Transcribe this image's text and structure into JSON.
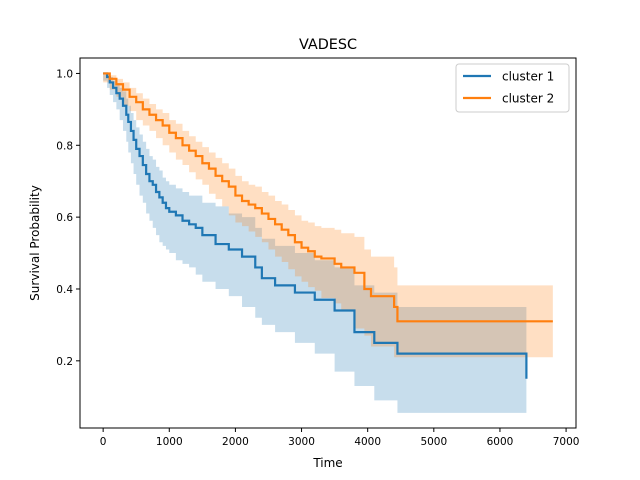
{
  "chart_data": {
    "type": "line",
    "title": "VADESC",
    "xlabel": "Time",
    "ylabel": "Survival Probability",
    "xlim": [
      -350,
      7150
    ],
    "ylim": [
      0.013,
      1.043
    ],
    "xticks": [
      0,
      1000,
      2000,
      3000,
      4000,
      5000,
      6000,
      7000
    ],
    "yticks": [
      0.2,
      0.4,
      0.6,
      0.8,
      1.0
    ],
    "xtick_labels": [
      "0",
      "1000",
      "2000",
      "3000",
      "4000",
      "5000",
      "6000",
      "7000"
    ],
    "ytick_labels": [
      "0.2",
      "0.4",
      "0.6",
      "0.8",
      "1.0"
    ],
    "legend_position": "top-right",
    "grid": false,
    "step": "post",
    "series": [
      {
        "name": "cluster 1",
        "color": "#1f77b4",
        "x": [
          0,
          60,
          100,
          150,
          200,
          250,
          300,
          350,
          380,
          420,
          460,
          500,
          550,
          600,
          650,
          700,
          750,
          800,
          850,
          900,
          950,
          1000,
          1100,
          1200,
          1300,
          1400,
          1500,
          1700,
          1900,
          2100,
          2300,
          2400,
          2600,
          2900,
          3200,
          3500,
          3800,
          4100,
          4450,
          6400
        ],
        "y": [
          1.0,
          0.99,
          0.975,
          0.96,
          0.945,
          0.93,
          0.91,
          0.885,
          0.865,
          0.84,
          0.815,
          0.79,
          0.77,
          0.745,
          0.72,
          0.7,
          0.69,
          0.67,
          0.655,
          0.64,
          0.625,
          0.615,
          0.605,
          0.59,
          0.58,
          0.57,
          0.55,
          0.525,
          0.51,
          0.49,
          0.46,
          0.43,
          0.41,
          0.39,
          0.37,
          0.34,
          0.28,
          0.25,
          0.22,
          0.15
        ],
        "ci_lower": [
          1.0,
          0.98,
          0.96,
          0.94,
          0.92,
          0.9,
          0.87,
          0.84,
          0.81,
          0.78,
          0.75,
          0.72,
          0.69,
          0.66,
          0.64,
          0.61,
          0.59,
          0.57,
          0.55,
          0.53,
          0.52,
          0.51,
          0.5,
          0.48,
          0.47,
          0.46,
          0.44,
          0.42,
          0.4,
          0.38,
          0.35,
          0.32,
          0.3,
          0.28,
          0.25,
          0.22,
          0.17,
          0.13,
          0.09,
          0.055
        ],
        "ci_upper": [
          1.0,
          1.0,
          0.99,
          0.98,
          0.97,
          0.96,
          0.95,
          0.93,
          0.91,
          0.89,
          0.87,
          0.85,
          0.83,
          0.81,
          0.79,
          0.77,
          0.76,
          0.74,
          0.73,
          0.71,
          0.7,
          0.69,
          0.68,
          0.67,
          0.66,
          0.66,
          0.64,
          0.63,
          0.61,
          0.6,
          0.57,
          0.54,
          0.52,
          0.5,
          0.48,
          0.46,
          0.41,
          0.39,
          0.35,
          0.28
        ]
      },
      {
        "name": "cluster 2",
        "color": "#ff7f0e",
        "x": [
          0,
          100,
          200,
          300,
          400,
          500,
          600,
          700,
          800,
          900,
          1000,
          1100,
          1200,
          1300,
          1400,
          1500,
          1600,
          1700,
          1800,
          1900,
          2000,
          2100,
          2200,
          2300,
          2400,
          2500,
          2600,
          2700,
          2800,
          2900,
          3000,
          3100,
          3200,
          3300,
          3500,
          3600,
          3800,
          3950,
          4050,
          4400,
          4450,
          6800
        ],
        "y": [
          1.0,
          0.985,
          0.97,
          0.955,
          0.935,
          0.92,
          0.9,
          0.885,
          0.87,
          0.855,
          0.835,
          0.82,
          0.8,
          0.785,
          0.77,
          0.75,
          0.735,
          0.715,
          0.7,
          0.685,
          0.66,
          0.645,
          0.635,
          0.625,
          0.61,
          0.595,
          0.58,
          0.565,
          0.55,
          0.53,
          0.515,
          0.505,
          0.49,
          0.485,
          0.47,
          0.46,
          0.445,
          0.4,
          0.38,
          0.35,
          0.31,
          0.31
        ],
        "ci_lower": [
          1.0,
          0.975,
          0.955,
          0.935,
          0.91,
          0.895,
          0.87,
          0.855,
          0.84,
          0.82,
          0.8,
          0.78,
          0.76,
          0.745,
          0.725,
          0.705,
          0.69,
          0.665,
          0.65,
          0.63,
          0.605,
          0.585,
          0.575,
          0.56,
          0.545,
          0.53,
          0.51,
          0.49,
          0.475,
          0.455,
          0.435,
          0.42,
          0.405,
          0.395,
          0.375,
          0.36,
          0.34,
          0.29,
          0.27,
          0.24,
          0.21,
          0.21
        ],
        "ci_upper": [
          1.0,
          0.995,
          0.985,
          0.975,
          0.96,
          0.945,
          0.93,
          0.915,
          0.9,
          0.89,
          0.87,
          0.86,
          0.84,
          0.825,
          0.81,
          0.795,
          0.78,
          0.765,
          0.75,
          0.735,
          0.715,
          0.7,
          0.69,
          0.685,
          0.67,
          0.66,
          0.645,
          0.635,
          0.62,
          0.605,
          0.59,
          0.585,
          0.575,
          0.57,
          0.565,
          0.555,
          0.545,
          0.51,
          0.49,
          0.46,
          0.41,
          0.41
        ]
      }
    ]
  }
}
